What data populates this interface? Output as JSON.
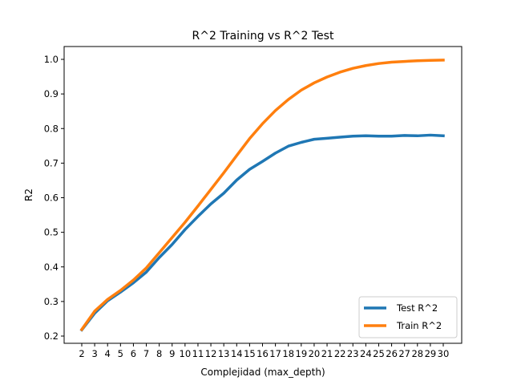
{
  "chart_data": {
    "type": "line",
    "title": "R^2 Training vs R^2 Test",
    "xlabel": "Complejidad (max_depth)",
    "ylabel": "R2",
    "x": [
      2,
      3,
      4,
      5,
      6,
      7,
      8,
      9,
      10,
      11,
      12,
      13,
      14,
      15,
      16,
      17,
      18,
      19,
      20,
      21,
      22,
      23,
      24,
      25,
      26,
      27,
      28,
      29,
      30
    ],
    "xlim": [
      2,
      30
    ],
    "ylim": [
      0.2,
      1.0
    ],
    "yticks": [
      0.2,
      0.3,
      0.4,
      0.5,
      0.6,
      0.7,
      0.8,
      0.9,
      1.0
    ],
    "legend": "lower-right",
    "grid": false,
    "series": [
      {
        "name": "Test R^2",
        "color": "#1f77b4",
        "values": [
          0.218,
          0.266,
          0.302,
          0.327,
          0.354,
          0.385,
          0.427,
          0.465,
          0.508,
          0.546,
          0.582,
          0.613,
          0.651,
          0.682,
          0.705,
          0.729,
          0.749,
          0.76,
          0.769,
          0.772,
          0.775,
          0.778,
          0.779,
          0.778,
          0.778,
          0.78,
          0.779,
          0.781,
          0.779
        ]
      },
      {
        "name": "Train R^2",
        "color": "#ff7f0e",
        "values": [
          0.219,
          0.272,
          0.306,
          0.332,
          0.362,
          0.397,
          0.441,
          0.485,
          0.529,
          0.576,
          0.624,
          0.672,
          0.722,
          0.771,
          0.814,
          0.852,
          0.884,
          0.911,
          0.932,
          0.949,
          0.963,
          0.974,
          0.982,
          0.988,
          0.992,
          0.994,
          0.996,
          0.997,
          0.998
        ]
      }
    ]
  }
}
